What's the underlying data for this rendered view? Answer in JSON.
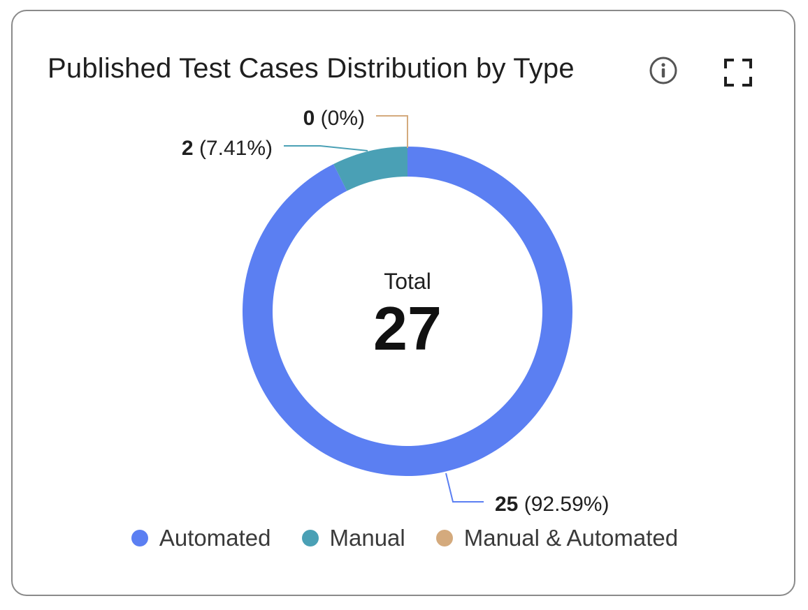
{
  "card": {
    "title": "Published Test Cases Distribution by Type",
    "info_icon": "info-icon",
    "expand_icon": "expand-icon"
  },
  "chart_data": {
    "type": "pie",
    "subtype": "donut",
    "center_label": "Total",
    "total": 27,
    "slices": [
      {
        "name": "Automated",
        "value": 25,
        "percent": "92.59%",
        "color": "#5b7ff2"
      },
      {
        "name": "Manual",
        "value": 2,
        "percent": "7.41%",
        "color": "#4aa0b5"
      },
      {
        "name": "Manual & Automated",
        "value": 0,
        "percent": "0%",
        "color": "#d4aa7d"
      }
    ],
    "legend_position": "bottom"
  }
}
